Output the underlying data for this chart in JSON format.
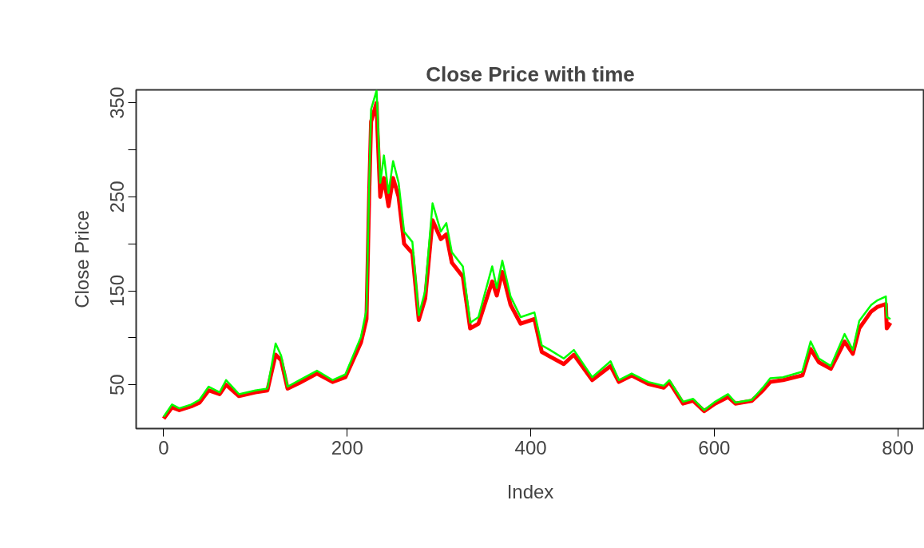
{
  "chart_data": {
    "type": "line",
    "title": "Close Price with time",
    "xlabel": "Index",
    "ylabel": "Close Price",
    "xlim": [
      -30,
      829
    ],
    "ylim": [
      3.4,
      363.8
    ],
    "xticks": [
      0,
      200,
      400,
      600,
      800
    ],
    "yticks": [
      50,
      {
        "value": 100,
        "label": null
      },
      150,
      {
        "value": 200,
        "label": null
      },
      250,
      {
        "value": 300,
        "label": null
      },
      350
    ],
    "grid": false,
    "line_style": "solid",
    "x": [
      0,
      9,
      17,
      30,
      39,
      49,
      61,
      68,
      82,
      100,
      113,
      122,
      128,
      135,
      148,
      167,
      184,
      198,
      215,
      221,
      224,
      226,
      232,
      233,
      236,
      240,
      245,
      250,
      256,
      262,
      271,
      278,
      285,
      293,
      302,
      308,
      314,
      326,
      334,
      343,
      358,
      363,
      369,
      378,
      389,
      404,
      412,
      421,
      436,
      447,
      467,
      487,
      496,
      510,
      528,
      545,
      551,
      566,
      577,
      589,
      601,
      615,
      623,
      641,
      653,
      661,
      675,
      696,
      705,
      714,
      727,
      742,
      751,
      758,
      771,
      778,
      787,
      788,
      792
    ],
    "series": [
      {
        "color": "#ff0000",
        "values": [
          14,
          26,
          23,
          27,
          31,
          44,
          40,
          50,
          38,
          42,
          44,
          82,
          76,
          46,
          52,
          62,
          53,
          58,
          95,
          120,
          255,
          330,
          350,
          320,
          250,
          270,
          240,
          270,
          250,
          200,
          190,
          119,
          142,
          225,
          205,
          210,
          180,
          165,
          110,
          115,
          160,
          145,
          170,
          135,
          115,
          120,
          85,
          80,
          72,
          82,
          55,
          70,
          53,
          60,
          51,
          47,
          53,
          30,
          33,
          22,
          30,
          37,
          30,
          33,
          44,
          53,
          55,
          60,
          88,
          74,
          67,
          96,
          83,
          110,
          128,
          133,
          136,
          110,
          116
        ]
      },
      {
        "color": "#00ff00",
        "values": [
          16,
          29,
          25,
          29,
          34,
          48,
          42,
          55,
          40,
          44,
          46,
          94,
          81,
          48,
          55,
          65,
          55,
          61,
          101,
          130,
          265,
          343,
          363,
          340,
          265,
          294,
          254,
          288,
          265,
          213,
          202,
          124,
          150,
          243,
          213,
          222,
          191,
          176,
          116,
          122,
          176,
          153,
          182,
          144,
          122,
          127,
          92,
          87,
          78,
          87,
          58,
          75,
          55,
          62,
          53,
          49,
          55,
          32,
          35,
          23,
          32,
          40,
          31,
          34,
          47,
          57,
          58,
          64,
          96,
          78,
          70,
          104,
          87,
          118,
          135,
          140,
          144,
          122,
          120
        ]
      }
    ]
  }
}
